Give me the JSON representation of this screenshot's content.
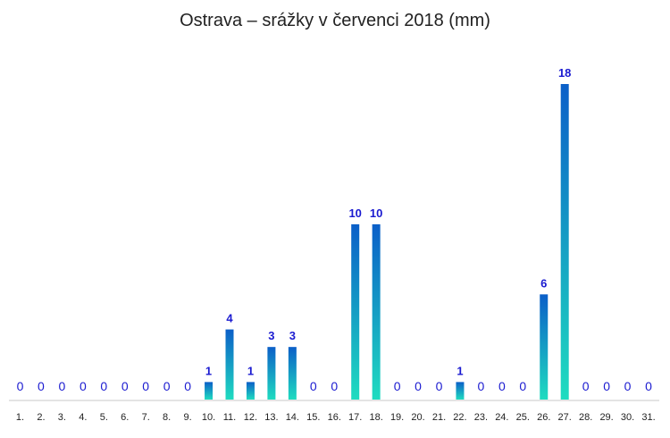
{
  "chart_data": {
    "type": "bar",
    "title": "Ostrava – srážky v červenci 2018 (mm)",
    "xlabel": "",
    "ylabel": "",
    "categories": [
      "1.",
      "2.",
      "3.",
      "4.",
      "5.",
      "6.",
      "7.",
      "8.",
      "9.",
      "10.",
      "11.",
      "12.",
      "13.",
      "14.",
      "15.",
      "16.",
      "17.",
      "18.",
      "19.",
      "20.",
      "21.",
      "22.",
      "23.",
      "24.",
      "25.",
      "26.",
      "27.",
      "28.",
      "29.",
      "30.",
      "31."
    ],
    "values": [
      0,
      0,
      0,
      0,
      0,
      0,
      0,
      0,
      0,
      1,
      4,
      1,
      3,
      3,
      0,
      0,
      10,
      10,
      0,
      0,
      0,
      1,
      0,
      0,
      0,
      6,
      18,
      0,
      0,
      0,
      0
    ],
    "ylim": [
      0,
      18
    ],
    "grid": false,
    "legend": "none",
    "colors": {
      "bar_top": "#0b5fc8",
      "bar_bottom": "#1fdcc0",
      "label": "#1a1ad0",
      "axis": "#c8c8c8",
      "tick_text": "#222222",
      "title": "#222222"
    }
  }
}
